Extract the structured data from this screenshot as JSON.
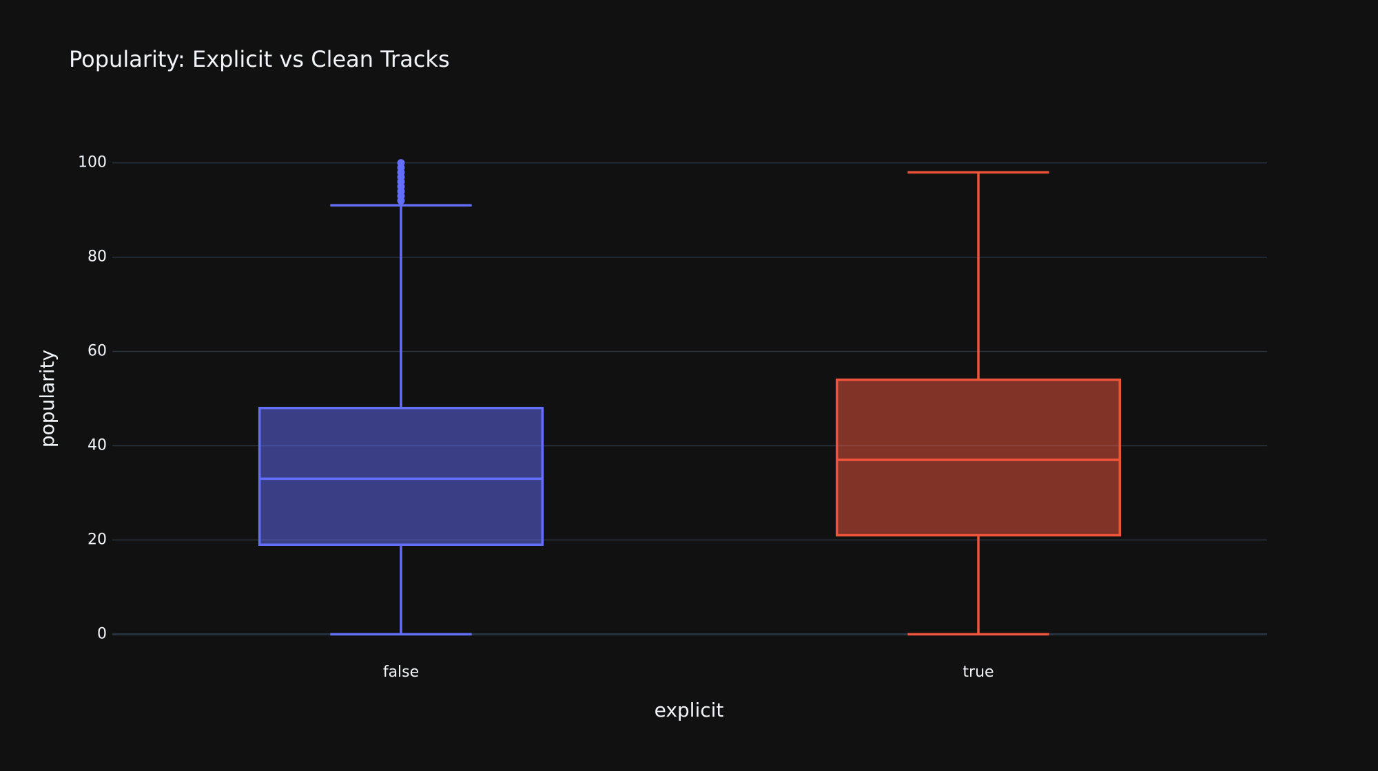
{
  "chart_data": {
    "type": "box",
    "title": "Popularity: Explicit vs Clean Tracks",
    "x_label": "explicit",
    "y_label": "popularity",
    "categories": [
      "false",
      "true"
    ],
    "boxes": [
      {
        "color": "#636efa",
        "min": 0,
        "q1": 19,
        "median": 33,
        "q3": 48,
        "max": 91,
        "outliers": [
          92,
          93,
          94,
          95,
          96,
          97,
          98,
          99,
          100
        ]
      },
      {
        "color": "#ef553b",
        "min": 0,
        "q1": 21,
        "median": 37,
        "q3": 54,
        "max": 98,
        "outliers": []
      }
    ],
    "ylim": [
      -5.5,
      105.5
    ],
    "yticks": [
      0,
      20,
      40,
      60,
      80,
      100
    ],
    "grid": true
  }
}
